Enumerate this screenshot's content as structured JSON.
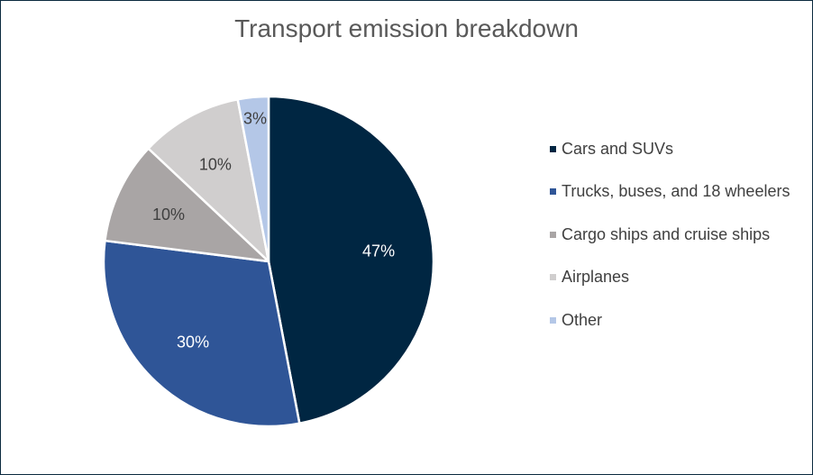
{
  "chart_data": {
    "type": "pie",
    "title": "Transport emission breakdown",
    "categories": [
      "Cars and SUVs",
      "Trucks, buses, and 18 wheelers",
      "Cargo ships and cruise ships",
      "Airplanes",
      "Other"
    ],
    "values": [
      47,
      30,
      10,
      10,
      3
    ],
    "data_labels": [
      "47%",
      "30%",
      "10%",
      "10%",
      "3%"
    ],
    "colors": [
      "#002642",
      "#2f5597",
      "#a9a5a5",
      "#d0cece",
      "#b4c7e7"
    ],
    "label_colors": [
      "#ffffff",
      "#ffffff",
      "#404040",
      "#404040",
      "#404040"
    ],
    "legend_position": "right",
    "start_angle": "top, clockwise"
  }
}
